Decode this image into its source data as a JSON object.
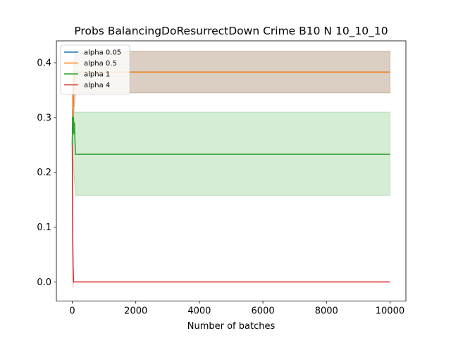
{
  "chart_data": {
    "type": "line",
    "title": "Probs BalancingDoResurrectDown Crime B10 N 10_10_10",
    "xlabel": "Number of batches",
    "ylabel": "",
    "xlim": [
      -500,
      10500
    ],
    "ylim": [
      -0.035,
      0.44
    ],
    "x_ticks": [
      0,
      2000,
      4000,
      6000,
      8000,
      10000
    ],
    "y_ticks": [
      0.0,
      0.1,
      0.2,
      0.3,
      0.4
    ],
    "x_tick_labels": [
      "0",
      "2000",
      "4000",
      "6000",
      "8000",
      "10000"
    ],
    "y_tick_labels": [
      "0.0",
      "0.1",
      "0.2",
      "0.3",
      "0.4"
    ],
    "grid": false,
    "legend_position": "top-left",
    "series": [
      {
        "name": "alpha 0.05",
        "color": "#1f77b4",
        "x": [
          0,
          10,
          20,
          30,
          40,
          50,
          60,
          70,
          80,
          90,
          100,
          10000
        ],
        "y": [
          0.25,
          0.3,
          0.34,
          0.32,
          0.36,
          0.35,
          0.37,
          0.38,
          0.383,
          0.383,
          0.383,
          0.383
        ],
        "band": {
          "x": [
            0,
            20,
            50,
            100,
            10000
          ],
          "lower": [
            0.25,
            0.28,
            0.31,
            0.345,
            0.345
          ],
          "upper": [
            0.25,
            0.38,
            0.4,
            0.421,
            0.421
          ]
        }
      },
      {
        "name": "alpha 0.5",
        "color": "#ff7f0e",
        "x": [
          0,
          10,
          20,
          30,
          40,
          50,
          60,
          70,
          80,
          90,
          100,
          10000
        ],
        "y": [
          0.25,
          0.3,
          0.34,
          0.32,
          0.36,
          0.35,
          0.37,
          0.38,
          0.383,
          0.383,
          0.383,
          0.383
        ],
        "band": {
          "x": [
            0,
            20,
            50,
            100,
            10000
          ],
          "lower": [
            0.25,
            0.28,
            0.31,
            0.345,
            0.345
          ],
          "upper": [
            0.25,
            0.38,
            0.4,
            0.421,
            0.421
          ]
        }
      },
      {
        "name": "alpha 1",
        "color": "#2ca02c",
        "x": [
          0,
          10,
          20,
          30,
          40,
          50,
          60,
          70,
          80,
          90,
          100,
          10000
        ],
        "y": [
          0.25,
          0.3,
          0.27,
          0.29,
          0.3,
          0.28,
          0.27,
          0.29,
          0.265,
          0.25,
          0.233,
          0.233
        ],
        "band": {
          "x": [
            0,
            20,
            50,
            100,
            10000
          ],
          "lower": [
            0.25,
            0.22,
            0.2,
            0.158,
            0.158
          ],
          "upper": [
            0.25,
            0.32,
            0.31,
            0.31,
            0.31
          ]
        }
      },
      {
        "name": "alpha 4",
        "color": "#d62728",
        "x": [
          0,
          5,
          10,
          15,
          20,
          25,
          30,
          40,
          60,
          100,
          10000
        ],
        "y": [
          0.25,
          0.2,
          0.15,
          0.08,
          0.05,
          0.03,
          0.02,
          0.0,
          0.0,
          0.0,
          0.0
        ],
        "band": {
          "x": [
            0,
            10,
            20,
            40,
            10000
          ],
          "lower": [
            0.25,
            0.1,
            -0.012,
            0.0,
            0.0
          ],
          "upper": [
            0.25,
            0.2,
            0.08,
            0.0,
            0.0
          ]
        }
      }
    ]
  }
}
